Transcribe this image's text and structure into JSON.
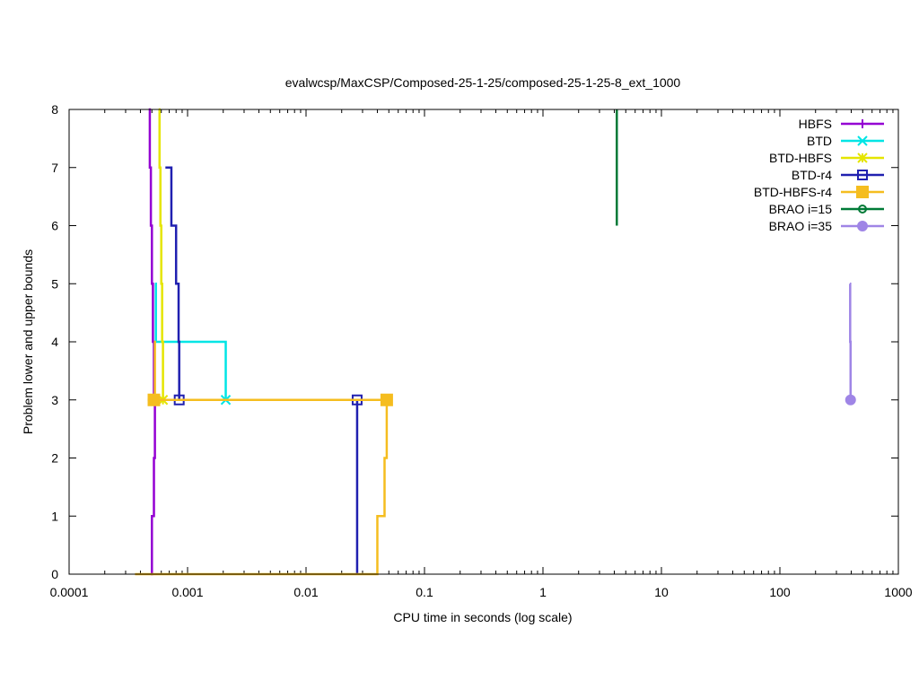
{
  "chart_data": {
    "type": "line",
    "title": "evalwcsp/MaxCSP/Composed-25-1-25/composed-25-1-25-8_ext_1000",
    "xlabel": "CPU time in seconds (log scale)",
    "ylabel": "Problem lower and upper bounds",
    "xscale": "log",
    "xlim": [
      0.0001,
      1000
    ],
    "ylim": [
      0,
      8
    ],
    "xticks": [
      {
        "v": 0.0001,
        "label": "0.0001"
      },
      {
        "v": 0.001,
        "label": "0.001"
      },
      {
        "v": 0.01,
        "label": "0.01"
      },
      {
        "v": 0.1,
        "label": "0.1"
      },
      {
        "v": 1,
        "label": "1"
      },
      {
        "v": 10,
        "label": "10"
      },
      {
        "v": 100,
        "label": "100"
      },
      {
        "v": 1000,
        "label": "1000"
      }
    ],
    "yticks": [
      {
        "v": 0,
        "label": "0"
      },
      {
        "v": 1,
        "label": "1"
      },
      {
        "v": 2,
        "label": "2"
      },
      {
        "v": 3,
        "label": "3"
      },
      {
        "v": 4,
        "label": "4"
      },
      {
        "v": 5,
        "label": "5"
      },
      {
        "v": 6,
        "label": "6"
      },
      {
        "v": 7,
        "label": "7"
      },
      {
        "v": 8,
        "label": "8"
      }
    ],
    "legend_position": "top-right",
    "series": [
      {
        "name": "HBFS",
        "color": "#9400d3",
        "marker": "plus",
        "upper": [
          [
            0.00047,
            8
          ],
          [
            0.00048,
            7
          ],
          [
            0.00049,
            6
          ],
          [
            0.0005,
            5
          ],
          [
            0.00051,
            4
          ],
          [
            0.00052,
            3
          ],
          [
            0.00046,
            3
          ]
        ],
        "lower": [
          [
            0.00049,
            0
          ],
          [
            0.0005,
            1
          ],
          [
            0.00052,
            2
          ],
          [
            0.00053,
            3
          ]
        ],
        "points": [
          [
            0.00052,
            3
          ]
        ]
      },
      {
        "name": "BTD",
        "color": "#00e5e5",
        "marker": "x",
        "upper": [
          [
            0.00053,
            5
          ],
          [
            0.00054,
            4
          ],
          [
            0.0021,
            4
          ],
          [
            0.0021,
            3
          ]
        ],
        "lower": [],
        "points": [
          [
            0.0021,
            3
          ]
        ]
      },
      {
        "name": "BTD-HBFS",
        "color": "#e5e500",
        "marker": "star",
        "upper": [
          [
            0.00057,
            8
          ],
          [
            0.00058,
            7
          ],
          [
            0.00059,
            6
          ],
          [
            0.0006,
            5
          ],
          [
            0.00061,
            4
          ],
          [
            0.00062,
            3
          ]
        ],
        "lower": [],
        "points": [
          [
            0.00062,
            3
          ]
        ]
      },
      {
        "name": "BTD-r4",
        "color": "#2020b0",
        "marker": "open-square",
        "upper": [
          [
            0.00065,
            7
          ],
          [
            0.00072,
            7
          ],
          [
            0.00073,
            6
          ],
          [
            0.00079,
            6
          ],
          [
            0.0008,
            5
          ],
          [
            0.00083,
            5
          ],
          [
            0.00084,
            4
          ],
          [
            0.00085,
            3
          ]
        ],
        "lower": [
          [
            0.027,
            0
          ],
          [
            0.027,
            3
          ]
        ],
        "points": [
          [
            0.00085,
            3
          ],
          [
            0.027,
            3
          ]
        ]
      },
      {
        "name": "BTD-HBFS-r4",
        "color": "#f5bd1f",
        "marker": "filled-square",
        "upper": [
          [
            0.00052,
            4
          ],
          [
            0.00053,
            3
          ],
          [
            0.048,
            3
          ]
        ],
        "lower": [
          [
            0.00036,
            0
          ],
          [
            0.039,
            0
          ],
          [
            0.04,
            1
          ],
          [
            0.045,
            1
          ],
          [
            0.046,
            2
          ],
          [
            0.047,
            2
          ],
          [
            0.048,
            3
          ]
        ],
        "points": [
          [
            0.00052,
            3
          ],
          [
            0.048,
            3
          ]
        ]
      },
      {
        "name": "BRAO i=15",
        "color": "#007a37",
        "marker": "open-circle",
        "upper": [
          [
            4.2,
            8
          ],
          [
            4.2,
            6
          ]
        ],
        "lower": [],
        "points": []
      },
      {
        "name": "BRAO i=35",
        "color": "#9f85e6",
        "marker": "filled-circle",
        "upper": [
          [
            390,
            5
          ],
          [
            392,
            4
          ],
          [
            395,
            3
          ]
        ],
        "lower": [],
        "points": [
          [
            395,
            3
          ]
        ]
      }
    ]
  }
}
